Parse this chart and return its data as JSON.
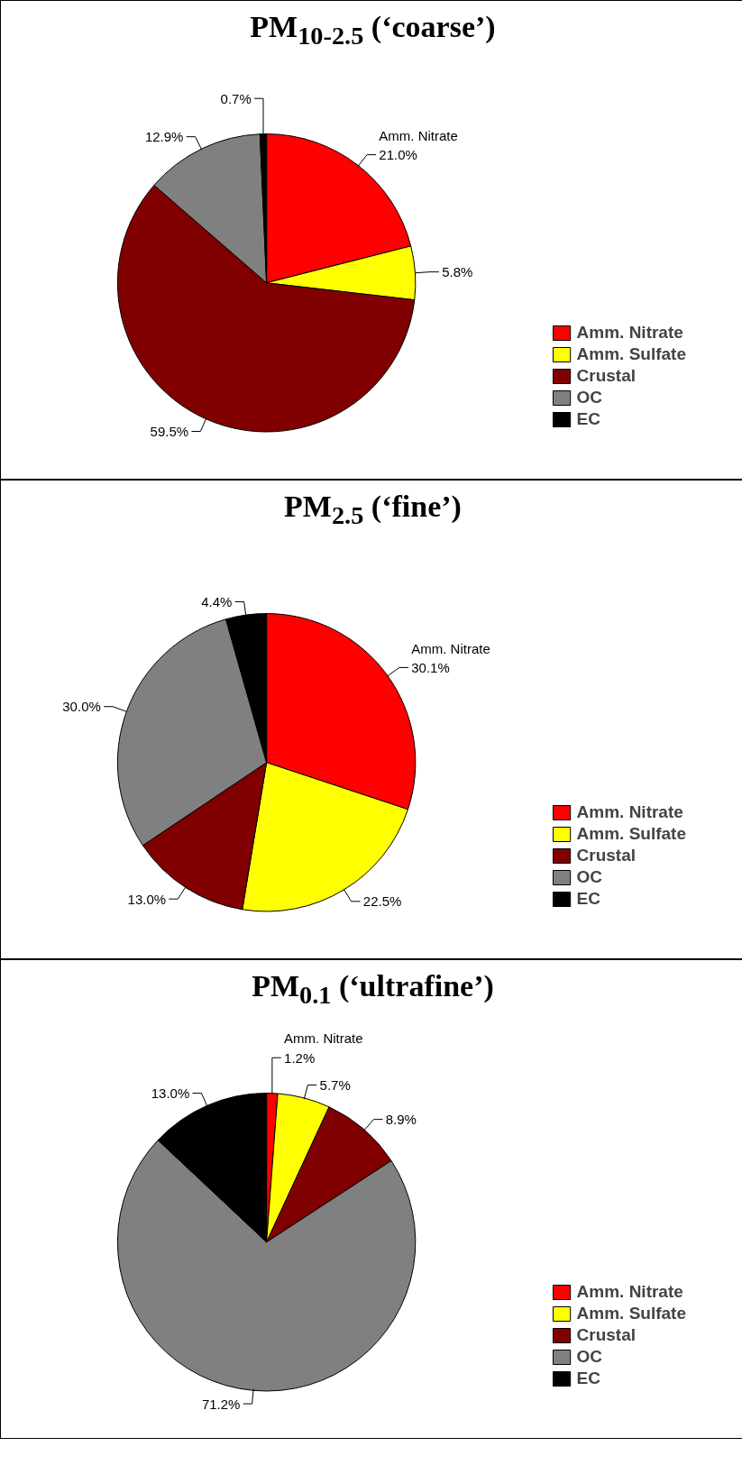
{
  "chart_data": [
    {
      "type": "pie",
      "title": "PM$_{10-2.5}$ (‘coarse’)",
      "categories": [
        "Amm. Nitrate",
        "Amm. Sulfate",
        "Crustal",
        "OC",
        "EC"
      ],
      "values": [
        21.0,
        5.8,
        59.5,
        12.9,
        0.7
      ],
      "colors": [
        "#ff0000",
        "#ffff00",
        "#800000",
        "#808080",
        "#000000"
      ],
      "value_labels": [
        "21.0%",
        "5.8%",
        "59.5%",
        "12.9%",
        "0.7%"
      ],
      "annotations": [
        "Amm. Nitrate"
      ],
      "legend": "right"
    },
    {
      "type": "pie",
      "title": "PM$_{2.5}$ (‘fine’)",
      "categories": [
        "Amm. Nitrate",
        "Amm. Sulfate",
        "Crustal",
        "OC",
        "EC"
      ],
      "values": [
        30.1,
        22.5,
        13.0,
        30.0,
        4.4
      ],
      "colors": [
        "#ff0000",
        "#ffff00",
        "#800000",
        "#808080",
        "#000000"
      ],
      "value_labels": [
        "30.1%",
        "22.5%",
        "13.0%",
        "30.0%",
        "4.4%"
      ],
      "annotations": [
        "Amm. Nitrate"
      ],
      "legend": "right"
    },
    {
      "type": "pie",
      "title": "PM$_{0.1}$ (‘ultrafine’)",
      "categories": [
        "Amm. Nitrate",
        "Amm. Sulfate",
        "Crustal",
        "OC",
        "EC"
      ],
      "values": [
        1.2,
        5.7,
        8.9,
        71.2,
        13.0
      ],
      "colors": [
        "#ff0000",
        "#ffff00",
        "#800000",
        "#808080",
        "#000000"
      ],
      "value_labels": [
        "1.2%",
        "5.7%",
        "8.9%",
        "71.2%",
        "13.0%"
      ],
      "annotations": [
        "Amm. Nitrate"
      ],
      "legend": "right"
    }
  ]
}
